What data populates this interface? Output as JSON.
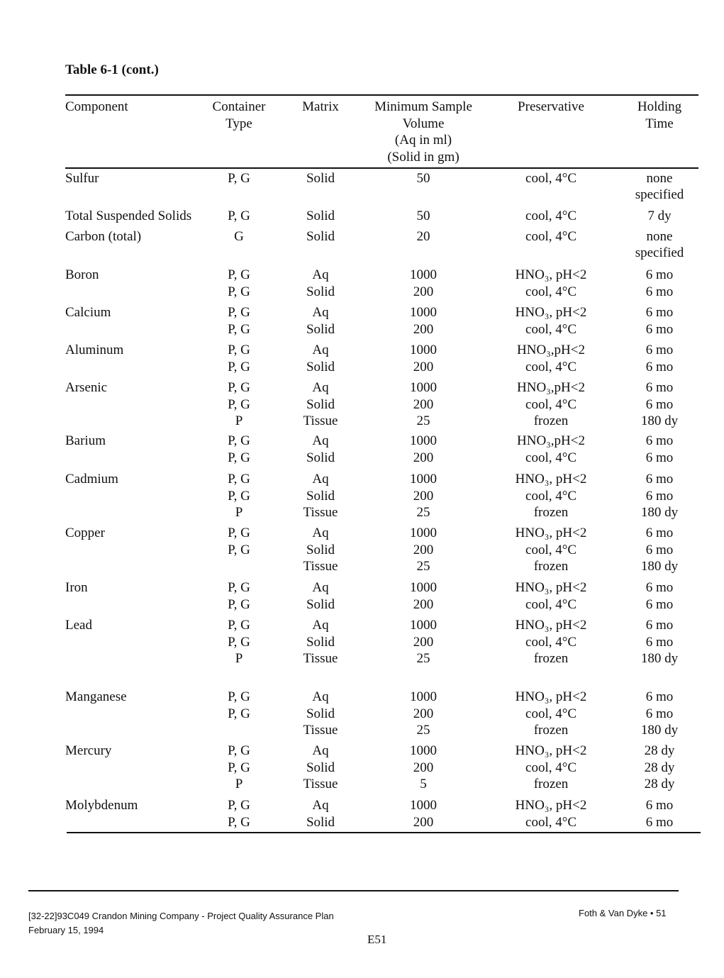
{
  "title": "Table 6-1 (cont.)",
  "table": {
    "header": [
      [
        "Component"
      ],
      [
        "Container",
        "Type"
      ],
      [
        "Matrix"
      ],
      [
        "Minimum Sample",
        "Volume",
        "(Aq in ml)",
        "(Solid in gm)"
      ],
      [
        "Preservative"
      ],
      [
        "Holding",
        "Time"
      ]
    ],
    "rows": [
      {
        "component": "Sulfur",
        "entries": [
          [
            "P, G",
            "Solid",
            "50",
            "cool, 4°C",
            "none specified"
          ]
        ]
      },
      {
        "component": "Total Suspended Solids",
        "entries": [
          [
            "P, G",
            "Solid",
            "50",
            "cool, 4°C",
            "7 dy"
          ]
        ]
      },
      {
        "component": "Carbon (total)",
        "entries": [
          [
            "G",
            "Solid",
            "20",
            "cool, 4°C",
            "none specified"
          ]
        ]
      },
      {
        "component": "Boron",
        "entries": [
          [
            "P, G",
            "Aq",
            "1000",
            "HNO₃, pH<2",
            "6 mo"
          ],
          [
            "P, G",
            "Solid",
            "200",
            "cool, 4°C",
            "6 mo"
          ]
        ]
      },
      {
        "component": "Calcium",
        "entries": [
          [
            "P, G",
            "Aq",
            "1000",
            "HNO₃, pH<2",
            "6 mo"
          ],
          [
            "P, G",
            "Solid",
            "200",
            "cool, 4°C",
            "6 mo"
          ]
        ]
      },
      {
        "component": "Aluminum",
        "entries": [
          [
            "P, G",
            "Aq",
            "1000",
            "HNO₃,pH<2",
            "6 mo"
          ],
          [
            "P, G",
            "Solid",
            "200",
            "cool, 4°C",
            "6 mo"
          ]
        ]
      },
      {
        "component": "Arsenic",
        "entries": [
          [
            "P, G",
            "Aq",
            "1000",
            "HNO₃,pH<2",
            "6 mo"
          ],
          [
            "P, G",
            "Solid",
            "200",
            "cool, 4°C",
            "6 mo"
          ],
          [
            "P",
            "Tissue",
            "25",
            "frozen",
            "180 dy"
          ]
        ]
      },
      {
        "component": "Barium",
        "entries": [
          [
            "P, G",
            "Aq",
            "1000",
            "HNO₃,pH<2",
            "6 mo"
          ],
          [
            "P, G",
            "Solid",
            "200",
            "cool, 4°C",
            "6 mo"
          ]
        ]
      },
      {
        "component": "Cadmium",
        "entries": [
          [
            "P, G",
            "Aq",
            "1000",
            "HNO₃, pH<2",
            "6 mo"
          ],
          [
            "P, G",
            "Solid",
            "200",
            "cool, 4°C",
            "6 mo"
          ],
          [
            "P",
            "Tissue",
            "25",
            "frozen",
            "180 dy"
          ]
        ]
      },
      {
        "component": "Copper",
        "entries": [
          [
            "P, G",
            "Aq",
            "1000",
            "HNO₃, pH<2",
            "6 mo"
          ],
          [
            "P, G",
            "Solid",
            "200",
            "cool, 4°C",
            "6 mo"
          ],
          [
            null,
            "Tissue",
            "25",
            "frozen",
            "180 dy"
          ]
        ]
      },
      {
        "component": "Iron",
        "entries": [
          [
            "P, G",
            "Aq",
            "1000",
            "HNO₃, pH<2",
            "6 mo"
          ],
          [
            "P, G",
            "Solid",
            "200",
            "cool, 4°C",
            "6 mo"
          ]
        ]
      },
      {
        "component": "Lead",
        "entries": [
          [
            "P, G",
            "Aq",
            "1000",
            "HNO₃, pH<2",
            "6 mo"
          ],
          [
            "P, G",
            "Solid",
            "200",
            "cool, 4°C",
            "6 mo"
          ],
          [
            "P",
            "Tissue",
            "25",
            "frozen",
            "180 dy"
          ]
        ]
      },
      {
        "component": "Manganese",
        "entries": [
          [
            "P, G",
            "Aq",
            "1000",
            "HNO₃, pH<2",
            "6 mo"
          ],
          [
            "P, G",
            "Solid",
            "200",
            "cool, 4°C",
            "6 mo"
          ],
          [
            null,
            "Tissue",
            "25",
            "frozen",
            "180 dy"
          ]
        ]
      },
      {
        "component": "Mercury",
        "entries": [
          [
            "P, G",
            "Aq",
            "1000",
            "HNO₃, pH<2",
            "28 dy"
          ],
          [
            "P, G",
            "Solid",
            "200",
            "cool, 4°C",
            "28 dy"
          ],
          [
            "P",
            "Tissue",
            "5",
            "frozen",
            "28 dy"
          ]
        ]
      },
      {
        "component": "Molybdenum",
        "entries": [
          [
            "P, G",
            "Aq",
            "1000",
            "HNO₃, pH<2",
            "6 mo"
          ],
          [
            "P, G",
            "Solid",
            "200",
            "cool, 4°C",
            "6 mo"
          ]
        ]
      }
    ]
  },
  "footer": {
    "document": "[32-22]93C049 Crandon Mining Company - Project Quality Assurance Plan",
    "date": "February 15, 1994",
    "company": "Foth & Van Dyke • 51",
    "page": "E51"
  }
}
